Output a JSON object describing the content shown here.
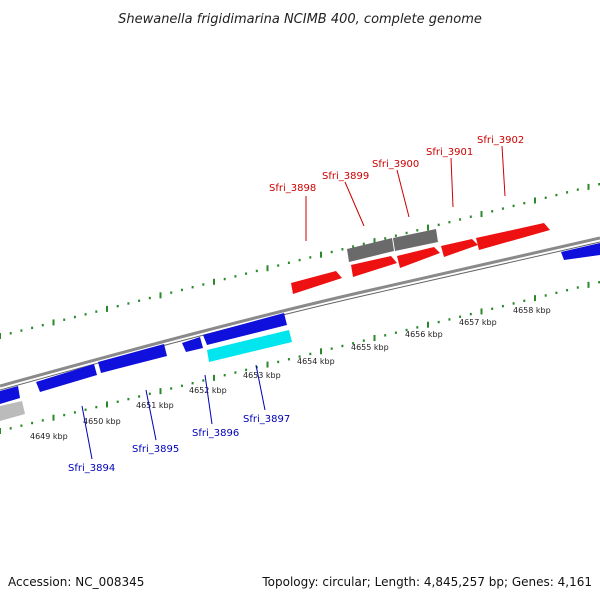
{
  "title": "Shewanella frigidimarina NCIMB 400, complete genome",
  "footer": {
    "accession": "Accession: NC_008345",
    "topology": "Topology: circular; Length: 4,845,257 bp; Genes: 4,161"
  },
  "colors": {
    "forward_gene": "#ee1111",
    "reverse_gene": "#1010dd",
    "highlight_gene": "#00e5ee",
    "neutral_gene": "#666666",
    "light_gene": "#bbbbbb",
    "tick": "#2a8a2a",
    "backbone": "#888888",
    "forward_label": "#cc0000",
    "reverse_label": "#0000bb"
  },
  "scale_labels": [
    "4649 kbp",
    "4650 kbp",
    "4651 kbp",
    "4652 kbp",
    "4653 kbp",
    "4654 kbp",
    "4655 kbp",
    "4656 kbp",
    "4657 kbp",
    "4658 kbp"
  ],
  "forward_labels": [
    "Sfri_3898",
    "Sfri_3899",
    "Sfri_3900",
    "Sfri_3901",
    "Sfri_3902"
  ],
  "reverse_labels": [
    "Sfri_3894",
    "Sfri_3895",
    "Sfri_3896",
    "Sfri_3897"
  ]
}
